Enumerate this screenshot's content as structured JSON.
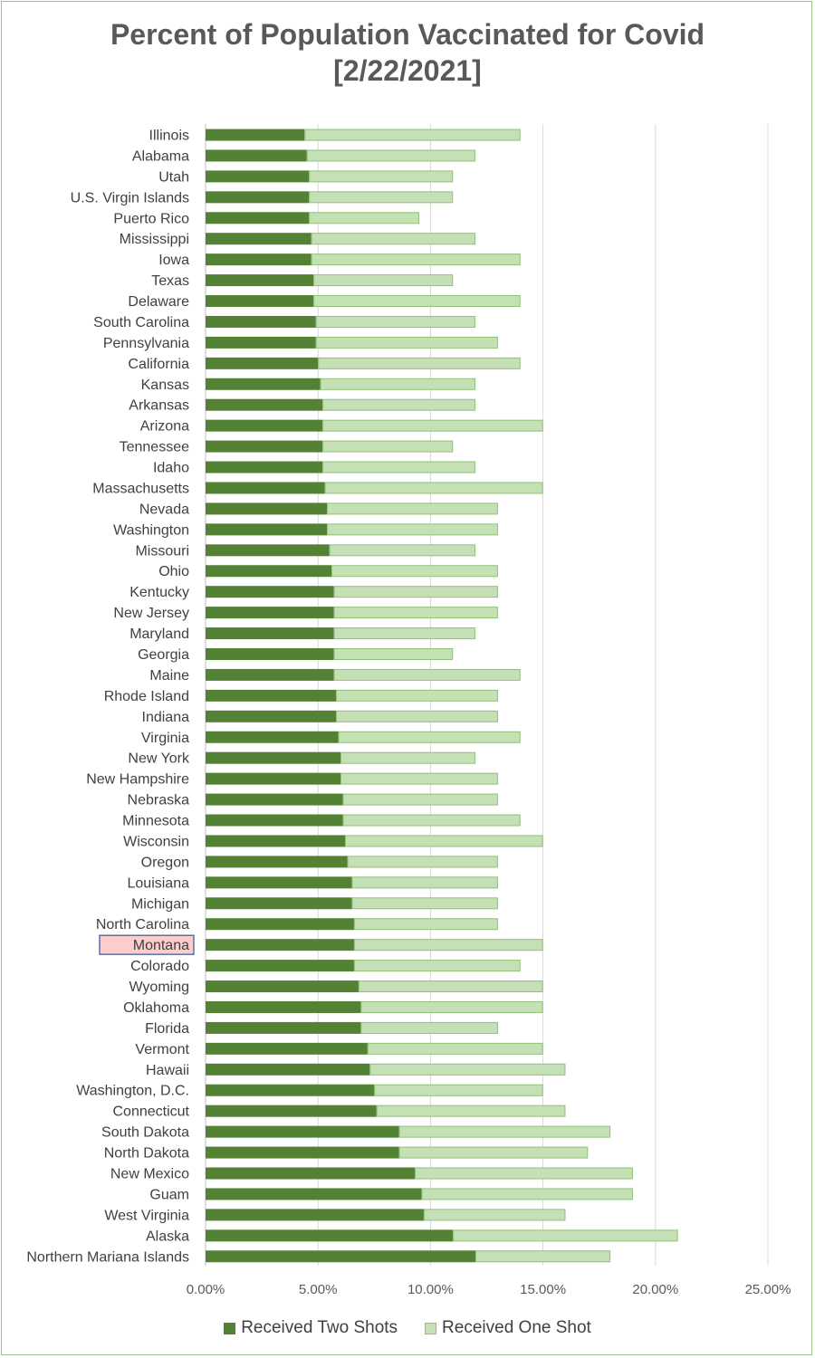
{
  "chart_data": {
    "type": "bar",
    "orientation": "horizontal",
    "stacked": true,
    "title": "Percent of Population Vaccinated for Covid",
    "subtitle": "[2/22/2021]",
    "xlim": [
      0,
      0.25
    ],
    "x_ticks": [
      "0.00%",
      "5.00%",
      "10.00%",
      "15.00%",
      "20.00%",
      "25.00%"
    ],
    "x_tick_values": [
      0,
      0.05,
      0.1,
      0.15,
      0.2,
      0.25
    ],
    "grid": "vertical",
    "legend_position": "bottom",
    "highlighted_category": "Montana",
    "categories": [
      "Illinois",
      "Alabama",
      "Utah",
      "U.S. Virgin Islands",
      "Puerto Rico",
      "Mississippi",
      "Iowa",
      "Texas",
      "Delaware",
      "South Carolina",
      "Pennsylvania",
      "California",
      "Kansas",
      "Arkansas",
      "Arizona",
      "Tennessee",
      "Idaho",
      "Massachusetts",
      "Nevada",
      "Washington",
      "Missouri",
      "Ohio",
      "Kentucky",
      "New Jersey",
      "Maryland",
      "Georgia",
      "Maine",
      "Rhode Island",
      "Indiana",
      "Virginia",
      "New York",
      "New Hampshire",
      "Nebraska",
      "Minnesota",
      "Wisconsin",
      "Oregon",
      "Louisiana",
      "Michigan",
      "North Carolina",
      "Montana",
      "Colorado",
      "Wyoming",
      "Oklahoma",
      "Florida",
      "Vermont",
      "Hawaii",
      "Washington, D.C.",
      "Connecticut",
      "South Dakota",
      "North Dakota",
      "New Mexico",
      "Guam",
      "West Virginia",
      "Alaska",
      "Northern Mariana Islands"
    ],
    "series": [
      {
        "name": "Received Two Shots",
        "color": "#548235",
        "values": [
          0.044,
          0.045,
          0.046,
          0.046,
          0.046,
          0.047,
          0.047,
          0.048,
          0.048,
          0.049,
          0.049,
          0.05,
          0.051,
          0.052,
          0.052,
          0.052,
          0.052,
          0.053,
          0.054,
          0.054,
          0.055,
          0.056,
          0.057,
          0.057,
          0.057,
          0.057,
          0.057,
          0.058,
          0.058,
          0.059,
          0.06,
          0.06,
          0.061,
          0.061,
          0.062,
          0.063,
          0.065,
          0.065,
          0.066,
          0.066,
          0.066,
          0.068,
          0.069,
          0.069,
          0.072,
          0.073,
          0.075,
          0.076,
          0.086,
          0.086,
          0.093,
          0.096,
          0.097,
          0.11,
          0.12
        ]
      },
      {
        "name": "Received One Shot",
        "color": "#c5e0b4",
        "values": [
          0.096,
          0.075,
          0.064,
          0.064,
          0.049,
          0.073,
          0.093,
          0.062,
          0.092,
          0.071,
          0.081,
          0.09,
          0.069,
          0.068,
          0.098,
          0.058,
          0.068,
          0.097,
          0.076,
          0.076,
          0.065,
          0.074,
          0.073,
          0.073,
          0.063,
          0.053,
          0.083,
          0.072,
          0.072,
          0.081,
          0.06,
          0.07,
          0.069,
          0.079,
          0.088,
          0.067,
          0.065,
          0.065,
          0.064,
          0.084,
          0.074,
          0.082,
          0.081,
          0.061,
          0.078,
          0.087,
          0.075,
          0.084,
          0.094,
          0.084,
          0.097,
          0.094,
          0.063,
          0.1,
          0.06
        ]
      }
    ]
  }
}
